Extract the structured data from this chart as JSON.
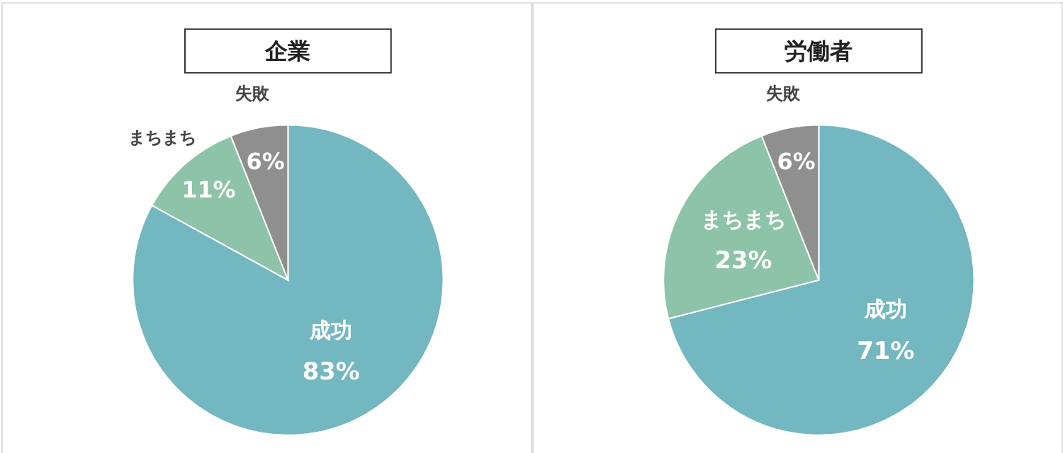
{
  "chart_data": [
    {
      "type": "pie",
      "title": "企業",
      "categories": [
        "成功",
        "まちまち",
        "失敗"
      ],
      "values": [
        83,
        11,
        6
      ],
      "value_labels": [
        "83%",
        "11%",
        "6%"
      ],
      "colors": [
        "#73b7c0",
        "#8cc3a9",
        "#8f8f8f"
      ],
      "legend": false
    },
    {
      "type": "pie",
      "title": "労働者",
      "categories": [
        "成功",
        "まちまち",
        "失敗"
      ],
      "values": [
        71,
        23,
        6
      ],
      "value_labels": [
        "71%",
        "23%",
        "6%"
      ],
      "colors": [
        "#73b7c0",
        "#8cc3a9",
        "#8f8f8f"
      ],
      "legend": false
    }
  ]
}
